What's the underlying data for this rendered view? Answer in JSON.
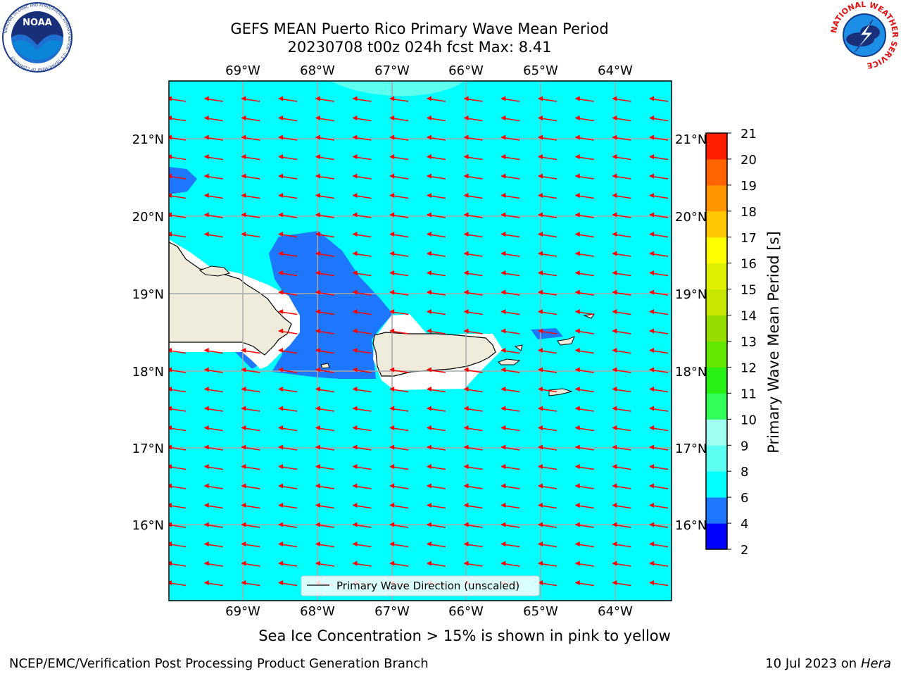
{
  "title": {
    "line1": "GEFS MEAN Puerto Rico Primary Wave Mean Period",
    "line2": "20230708 t00z 024h fcst   Max: 8.41"
  },
  "logos": {
    "noaa_text": "NOAA",
    "noaa_ring": "NATIONAL OCEANIC AND ATMOSPHERIC ADMINISTRATION · U.S. DEPARTMENT OF COMMERCE",
    "nws_ring": "NATIONAL WEATHER SERVICE"
  },
  "map": {
    "lon_labels": [
      "69°W",
      "68°W",
      "67°W",
      "66°W",
      "65°W",
      "64°W"
    ],
    "lat_labels": [
      "21°N",
      "20°N",
      "19°N",
      "18°N",
      "17°N",
      "16°N"
    ],
    "legend_label": "Primary Wave Direction (unscaled)",
    "arrow_color": "#ff0000",
    "land_color": "#efecdb",
    "sea_color": "#00ffff"
  },
  "colorbar": {
    "label": "Primary Wave Mean Period [s]",
    "ticks": [
      "2",
      "4",
      "6",
      "8",
      "9",
      "10",
      "11",
      "12",
      "13",
      "14",
      "15",
      "16",
      "17",
      "18",
      "19",
      "20",
      "21"
    ],
    "colors": [
      "#0000ff",
      "#1e78ff",
      "#00ffff",
      "#5cfff0",
      "#9ffff0",
      "#32ff5a",
      "#28f014",
      "#64e600",
      "#96dc00",
      "#c8e600",
      "#dcf000",
      "#ffff00",
      "#ffc800",
      "#ff9600",
      "#ff6400",
      "#ff1e00"
    ]
  },
  "note": "Sea Ice Concentration > 15% is shown in pink to yellow",
  "footer": {
    "left": "NCEP/EMC/Verification Post Processing Product Generation Branch",
    "right_prefix": "10 Jul 2023 on ",
    "right_host": "Hera"
  }
}
